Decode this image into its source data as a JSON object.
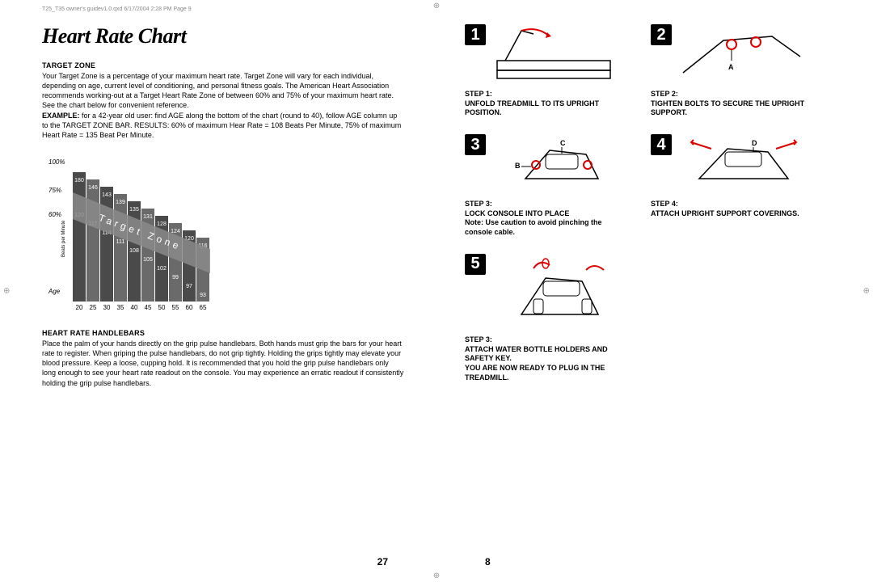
{
  "print_header": "T25_T35 owner's guidev1.0.qxd  6/17/2004  2:28 PM  Page 9",
  "left": {
    "title": "Heart Rate Chart",
    "target_zone_head": "TARGET ZONE",
    "target_zone_body": "Your Target Zone is a percentage of your maximum heart rate. Target Zone will vary for each individual, depending on age, current level of conditioning, and personal fitness goals. The American Heart Association recommends working-out at a Target Heart Rate Zone of between 60% and 75% of your maximum heart rate. See the chart below for convenient reference.",
    "example_label": "EXAMPLE:",
    "example_body": " for a 42-year old user: find AGE along the bottom of the chart (round to 40), follow AGE column up to the TARGET ZONE BAR. RESULTS: 60% of maximum Hear Rate = 108 Beats Per Minute, 75% of maximum Heart Rate = 135 Beat Per Minute.",
    "chart": {
      "y_labels": [
        "100%",
        "75%",
        "60%"
      ],
      "y_axis_label": "Beats per Minute",
      "x_axis_label": "Age",
      "x_ticks": [
        "20",
        "25",
        "30",
        "35",
        "40",
        "45",
        "50",
        "55",
        "60",
        "65"
      ],
      "band_text": "Target Zone",
      "top_values": [
        "180",
        "146",
        "143",
        "139",
        "135",
        "131",
        "128",
        "124",
        "120",
        "116"
      ],
      "bot_values": [
        "120",
        "117",
        "114",
        "111",
        "108",
        "105",
        "102",
        "99",
        "97",
        "93"
      ],
      "colors": {
        "bar_dark": "#4a4a4a",
        "bar_light": "#6a6a6a",
        "band": "#8a8a8a",
        "text_on": "#ffffff",
        "axis": "#000000"
      }
    },
    "handlebars_head": "HEART RATE HANDLEBARS",
    "handlebars_body": "Place the palm of your hands directly on the grip pulse handlebars. Both hands must grip the bars for your heart rate to register. When griping the pulse handlebars, do not grip tightly. Holding the grips tightly may elevate your blood pressure. Keep a loose, cupping hold. It is recommended that you hold the grip pulse handlebars only long enough to see your heart rate readout on the console. You may experience an erratic readout if consistently holding the grip pulse handlebars.",
    "page_num": "27"
  },
  "right": {
    "steps": [
      {
        "num": "1",
        "label": "STEP 1:",
        "text": "UNFOLD TREADMILL TO ITS UPRIGHT POSITION.",
        "callout": ""
      },
      {
        "num": "2",
        "label": "STEP 2:",
        "text": "TIGHTEN BOLTS TO SECURE THE UPRIGHT SUPPORT.",
        "callout": "A"
      },
      {
        "num": "3",
        "label": "STEP 3:",
        "text": "LOCK CONSOLE INTO PLACE",
        "note": "Note: Use caution to avoid pinching the console cable.",
        "callout": "B  C"
      },
      {
        "num": "4",
        "label": "STEP 4:",
        "text": "ATTACH UPRIGHT SUPPORT COVERINGS.",
        "callout": "D"
      },
      {
        "num": "5",
        "label": "STEP 3:",
        "text": "ATTACH WATER BOTTLE HOLDERS AND SAFETY KEY.",
        "extra": "YOU ARE NOW READY TO PLUG IN THE TREADMILL.",
        "callout": ""
      }
    ],
    "page_num": "8"
  }
}
